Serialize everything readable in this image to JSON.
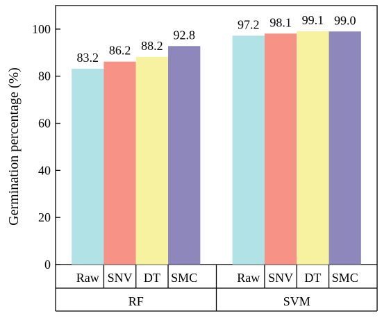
{
  "chart_data": {
    "type": "bar",
    "ylabel": "Germination percentage (%)",
    "xlabel": "",
    "title": "",
    "ylim": [
      0,
      110
    ],
    "yticks": [
      0,
      20,
      40,
      60,
      80,
      100
    ],
    "grid": false,
    "groups": [
      {
        "name": "RF",
        "bars": [
          {
            "category": "Raw",
            "value": 83.2,
            "label": "83.2",
            "color": "#B0E2E6"
          },
          {
            "category": "SNV",
            "value": 86.2,
            "label": "86.2",
            "color": "#F79286"
          },
          {
            "category": "DT",
            "value": 88.2,
            "label": "88.2",
            "color": "#F6F2A0"
          },
          {
            "category": "SMC",
            "value": 92.8,
            "label": "92.8",
            "color": "#8D87BB"
          }
        ]
      },
      {
        "name": "SVM",
        "bars": [
          {
            "category": "Raw",
            "value": 97.2,
            "label": "97.2",
            "color": "#B0E2E6"
          },
          {
            "category": "SNV",
            "value": 98.1,
            "label": "98.1",
            "color": "#F79286"
          },
          {
            "category": "DT",
            "value": 99.1,
            "label": "99.1",
            "color": "#F6F2A0"
          },
          {
            "category": "SMC",
            "value": 99.0,
            "label": "99.0",
            "color": "#8D87BB"
          }
        ]
      }
    ]
  }
}
